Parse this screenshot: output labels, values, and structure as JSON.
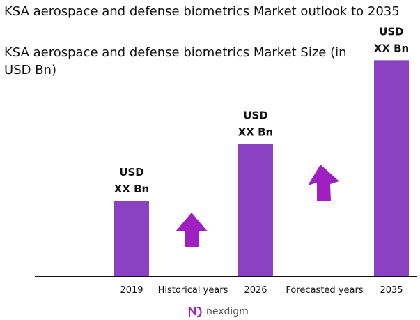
{
  "title": "KSA aerospace and defense biometrics Market outlook to 2035",
  "subtitle": "KSA aerospace and defense biometrics Market Size (in USD Bn)",
  "colors": {
    "bar": "#8a41c2",
    "arrow": "#a01fc0",
    "axis": "#111111",
    "logo": "#a01fc0"
  },
  "chart_data": {
    "type": "bar",
    "categories": [
      "2019",
      "2026",
      "2035"
    ],
    "values": [
      1,
      1.75,
      2.85
    ],
    "value_labels": [
      [
        "USD",
        "XX Bn"
      ],
      [
        "USD",
        "XX Bn"
      ],
      [
        "USD",
        "XX Bn"
      ]
    ],
    "period_labels": [
      "Historical years",
      "Forecasted years"
    ],
    "ylim": [
      0,
      3
    ],
    "grid": false,
    "legend": "none"
  },
  "logo": {
    "text": "nexdigm",
    "icon": "nexdigm-logo-icon"
  }
}
